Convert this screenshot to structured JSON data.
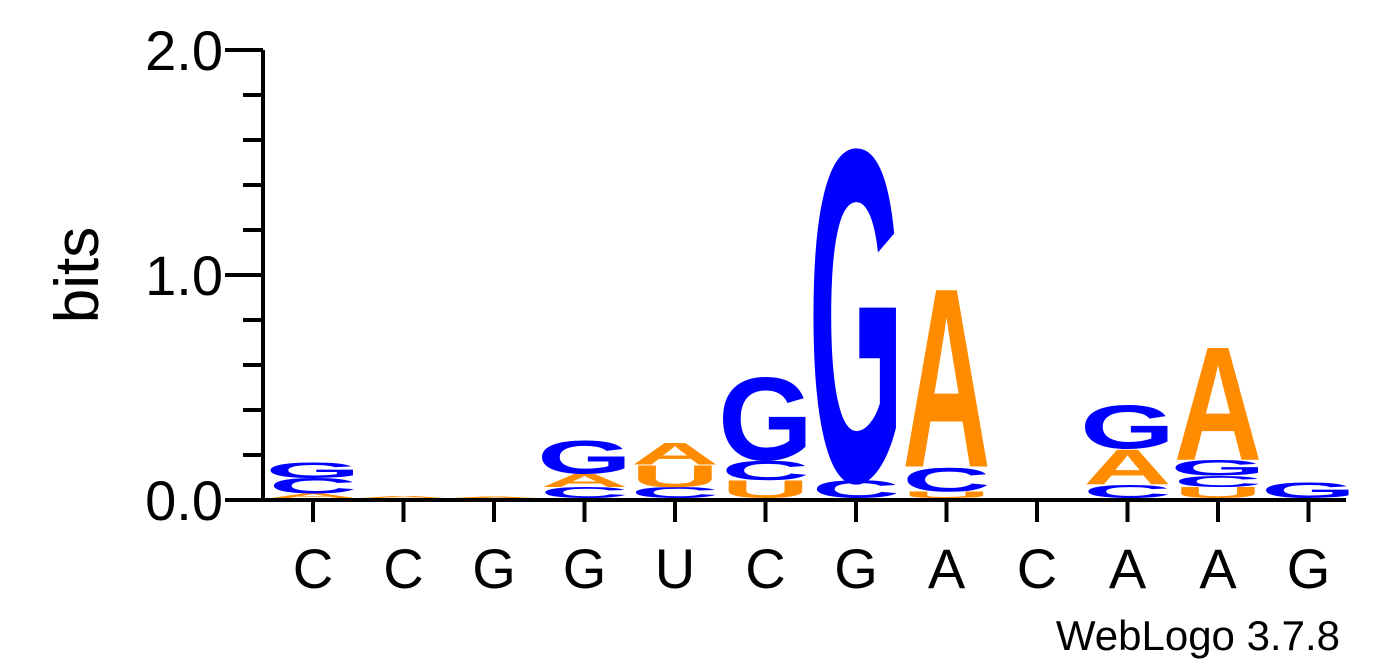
{
  "chart_data": {
    "type": "sequence-logo",
    "ylabel": "bits",
    "ylim": [
      0,
      2
    ],
    "y_ticks": [
      "0.0",
      "1.0",
      "2.0"
    ],
    "positions": [
      "C",
      "C",
      "G",
      "G",
      "U",
      "C",
      "G",
      "A",
      "C",
      "A",
      "A",
      "G"
    ],
    "stacks": [
      [
        {
          "letter": "A",
          "bits": 0.02
        },
        {
          "letter": "C",
          "bits": 0.07
        },
        {
          "letter": "G",
          "bits": 0.07
        }
      ],
      [
        {
          "letter": "A",
          "bits": 0.01
        }
      ],
      [
        {
          "letter": "A",
          "bits": 0.005
        }
      ],
      [
        {
          "letter": "C",
          "bits": 0.05
        },
        {
          "letter": "A",
          "bits": 0.06
        },
        {
          "letter": "G",
          "bits": 0.15
        }
      ],
      [
        {
          "letter": "C",
          "bits": 0.05
        },
        {
          "letter": "U",
          "bits": 0.1
        },
        {
          "letter": "A",
          "bits": 0.1
        }
      ],
      [
        {
          "letter": "U",
          "bits": 0.08
        },
        {
          "letter": "C",
          "bits": 0.09
        },
        {
          "letter": "G",
          "bits": 0.38
        }
      ],
      [
        {
          "letter": "C",
          "bits": 0.08
        },
        {
          "letter": "G",
          "bits": 1.52
        }
      ],
      [
        {
          "letter": "U",
          "bits": 0.03
        },
        {
          "letter": "C",
          "bits": 0.11
        },
        {
          "letter": "A",
          "bits": 0.82
        }
      ],
      [],
      [
        {
          "letter": "C",
          "bits": 0.06
        },
        {
          "letter": "A",
          "bits": 0.16
        },
        {
          "letter": "G",
          "bits": 0.2
        }
      ],
      [
        {
          "letter": "U",
          "bits": 0.05
        },
        {
          "letter": "C",
          "bits": 0.05
        },
        {
          "letter": "G",
          "bits": 0.07
        },
        {
          "letter": "A",
          "bits": 0.52
        }
      ],
      [
        {
          "letter": "G",
          "bits": 0.07
        }
      ]
    ],
    "colors": {
      "A": "#ff8c00",
      "U": "#ff8c00",
      "C": "#0000ff",
      "G": "#0000ff"
    }
  },
  "footer": {
    "credit": "WebLogo 3.7.8"
  }
}
